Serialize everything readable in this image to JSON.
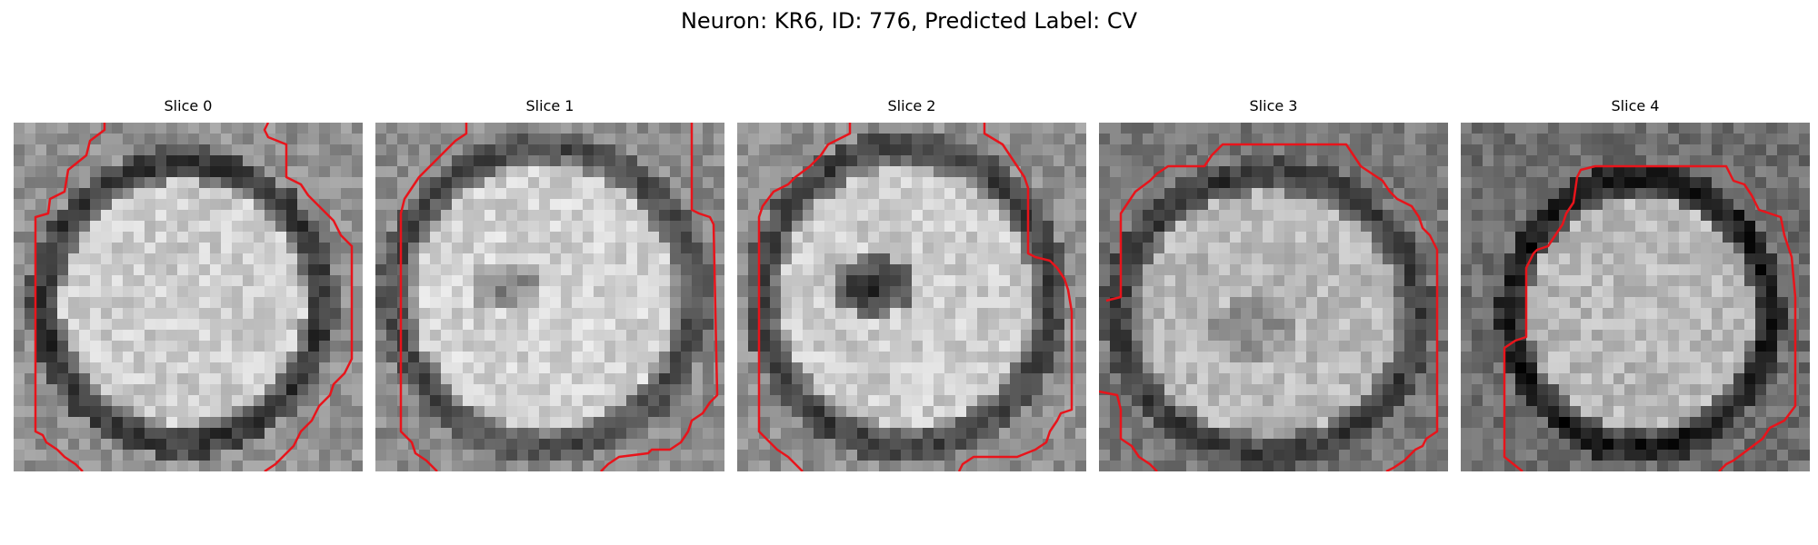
{
  "figure": {
    "title": "Neuron: KR6, ID: 776, Predicted Label: CV"
  },
  "panels": [
    {
      "title": "Slice 0",
      "variant": "plain"
    },
    {
      "title": "Slice 1",
      "variant": "faint-spot"
    },
    {
      "title": "Slice 2",
      "variant": "dark-nucleus"
    },
    {
      "title": "Slice 3",
      "variant": "top-contour"
    },
    {
      "title": "Slice 4",
      "variant": "narrow"
    }
  ],
  "colors": {
    "contour": "#e8141b",
    "background": "#ffffff"
  }
}
